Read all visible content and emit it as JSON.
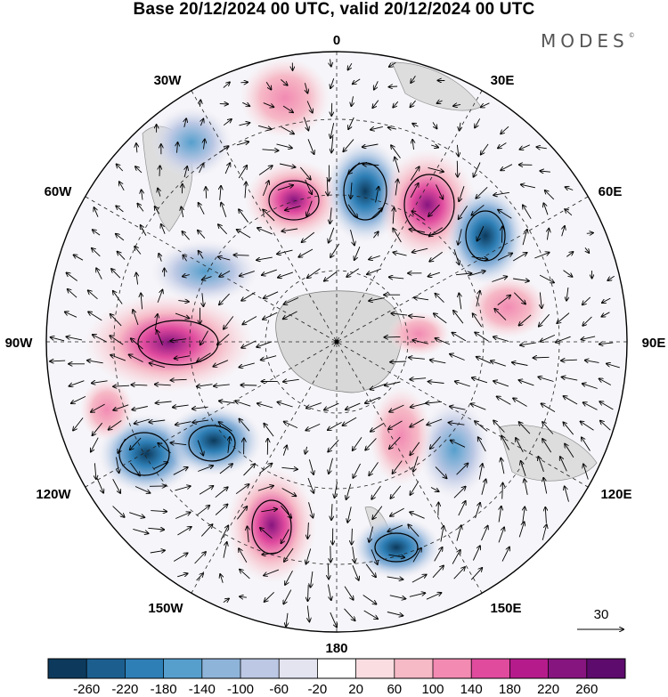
{
  "title": "Base 20/12/2024 00 UTC, valid 20/12/2024 00 UTC",
  "brand": "MODES",
  "brand_mark": "©",
  "map": {
    "projection": "south-polar-stereographic",
    "longitude_labels": {
      "top": "0",
      "top_right": "30E",
      "right_upper": "60E",
      "right": "90E",
      "right_lower": "120E",
      "bottom_right": "150E",
      "bottom": "180",
      "bottom_left": "150W",
      "left_lower": "120W",
      "left": "90W",
      "left_upper": "60W",
      "top_left": "30W"
    },
    "reference_vector_label": "30",
    "field_colors": {
      "land": "#d8d8d8",
      "coast": "#777777",
      "contour": "#000000"
    }
  },
  "colorbar": {
    "ticks": [
      "-260",
      "-220",
      "-180",
      "-140",
      "-100",
      "-60",
      "-20",
      "20",
      "60",
      "100",
      "140",
      "180",
      "220",
      "260"
    ],
    "colors": [
      "#0d3a5c",
      "#1c5f8f",
      "#2e7fb6",
      "#569fcd",
      "#8fb4da",
      "#bcc8e4",
      "#e3e4f0",
      "#ffffff",
      "#f9dde0",
      "#f6b9c6",
      "#f28ab2",
      "#e04b9e",
      "#b51b8b",
      "#86157f",
      "#5d0b6c"
    ]
  }
}
